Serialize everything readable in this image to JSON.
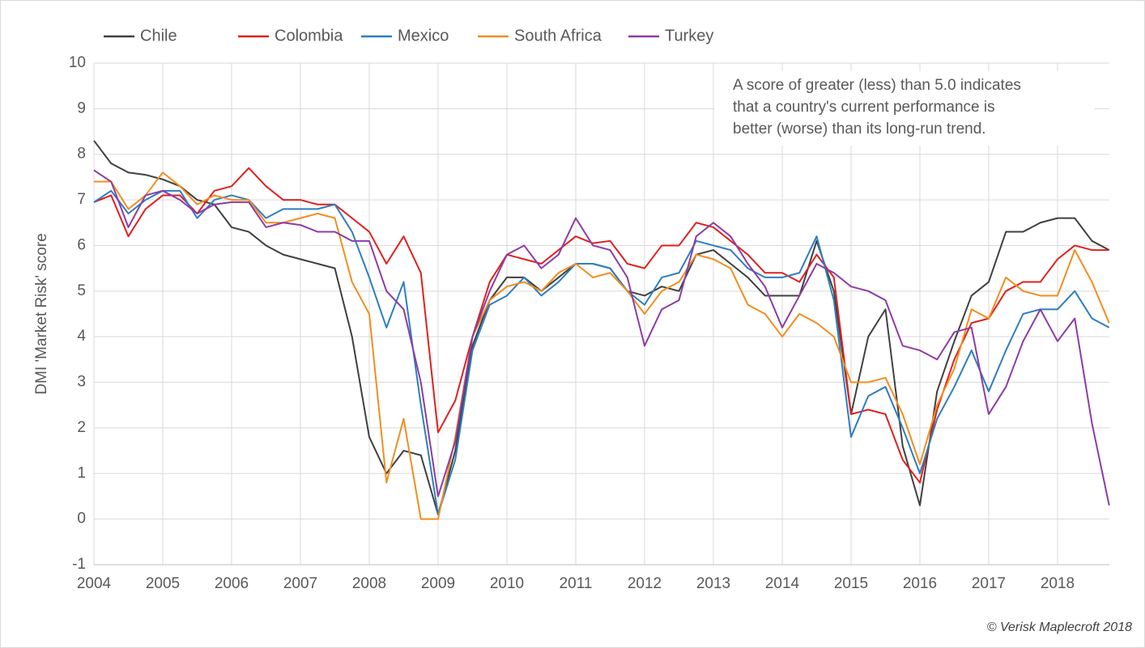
{
  "chart_data": {
    "type": "line",
    "y_label": "DMI 'Market Risk' score",
    "annotation": [
      "A score of greater (less) than 5.0 indicates",
      "that a country's current performance is",
      "better (worse) than its long-run trend."
    ],
    "source": "© Verisk Maplecroft 2018",
    "legend": "top-left",
    "grid": true,
    "xlim": [
      2004,
      2018.75
    ],
    "xticks": [
      2004,
      2005,
      2006,
      2007,
      2008,
      2009,
      2010,
      2011,
      2012,
      2013,
      2014,
      2015,
      2016,
      2017,
      2018
    ],
    "ylim": [
      -1,
      10
    ],
    "yticks": [
      -1,
      0,
      1,
      2,
      3,
      4,
      5,
      6,
      7,
      8,
      9,
      10
    ],
    "x": [
      2004,
      2004.25,
      2004.5,
      2004.75,
      2005,
      2005.25,
      2005.5,
      2005.75,
      2006,
      2006.25,
      2006.5,
      2006.75,
      2007,
      2007.25,
      2007.5,
      2007.75,
      2008,
      2008.25,
      2008.5,
      2008.75,
      2009,
      2009.25,
      2009.5,
      2009.75,
      2010,
      2010.25,
      2010.5,
      2010.75,
      2011,
      2011.25,
      2011.5,
      2011.75,
      2012,
      2012.25,
      2012.5,
      2012.75,
      2013,
      2013.25,
      2013.5,
      2013.75,
      2014,
      2014.25,
      2014.5,
      2014.75,
      2015,
      2015.25,
      2015.5,
      2015.75,
      2016,
      2016.25,
      2016.5,
      2016.75,
      2017,
      2017.25,
      2017.5,
      2017.75,
      2018,
      2018.25,
      2018.5,
      2018.75
    ],
    "series": [
      {
        "name": "Chile",
        "color": "#404040",
        "values": [
          8.3,
          7.8,
          7.6,
          7.55,
          7.45,
          7.3,
          7.0,
          6.9,
          6.4,
          6.3,
          6.0,
          5.8,
          5.7,
          5.6,
          5.5,
          4.0,
          1.8,
          1.0,
          1.5,
          1.4,
          0.1,
          1.5,
          3.8,
          4.8,
          5.3,
          5.3,
          5.0,
          5.3,
          5.6,
          5.6,
          5.5,
          5.0,
          4.9,
          5.1,
          5.0,
          5.8,
          5.9,
          5.6,
          5.3,
          4.9,
          4.9,
          4.9,
          6.1,
          5.0,
          2.3,
          4.0,
          4.6,
          1.6,
          0.3,
          2.8,
          3.9,
          4.9,
          5.2,
          6.3,
          6.3,
          6.5,
          6.6,
          6.6,
          6.1,
          5.9
        ]
      },
      {
        "name": "Colombia",
        "color": "#e0201f",
        "values": [
          6.95,
          7.1,
          6.2,
          6.8,
          7.1,
          7.1,
          6.7,
          7.2,
          7.3,
          7.7,
          7.3,
          7.0,
          7.0,
          6.9,
          6.9,
          6.6,
          6.3,
          5.6,
          6.2,
          5.4,
          1.9,
          2.6,
          4.0,
          5.2,
          5.8,
          5.7,
          5.6,
          5.9,
          6.2,
          6.05,
          6.1,
          5.6,
          5.5,
          6.0,
          6.0,
          6.5,
          6.4,
          6.1,
          5.8,
          5.4,
          5.4,
          5.2,
          5.8,
          5.3,
          2.3,
          2.4,
          2.3,
          1.3,
          0.8,
          2.4,
          3.5,
          4.3,
          4.4,
          5.0,
          5.2,
          5.2,
          5.7,
          6.0,
          5.9,
          5.9
        ]
      },
      {
        "name": "Mexico",
        "color": "#2e7ebf",
        "values": [
          6.95,
          7.2,
          6.7,
          7.0,
          7.2,
          7.2,
          6.6,
          7.0,
          7.1,
          7.0,
          6.6,
          6.8,
          6.8,
          6.8,
          6.9,
          6.3,
          5.3,
          4.2,
          5.2,
          2.5,
          0.1,
          1.3,
          3.7,
          4.7,
          4.9,
          5.3,
          4.9,
          5.2,
          5.6,
          5.6,
          5.5,
          5.0,
          4.7,
          5.3,
          5.4,
          6.1,
          6.0,
          5.9,
          5.5,
          5.3,
          5.3,
          5.4,
          6.2,
          4.8,
          1.8,
          2.7,
          2.9,
          2.0,
          1.0,
          2.2,
          2.9,
          3.7,
          2.8,
          3.7,
          4.5,
          4.6,
          4.6,
          5.0,
          4.4,
          4.2
        ]
      },
      {
        "name": "South Africa",
        "color": "#f28e1e",
        "values": [
          7.4,
          7.4,
          6.8,
          7.1,
          7.6,
          7.3,
          6.9,
          7.1,
          7.0,
          7.0,
          6.5,
          6.5,
          6.6,
          6.7,
          6.6,
          5.2,
          4.5,
          0.8,
          2.2,
          0.0,
          0.0,
          1.8,
          4.0,
          4.8,
          5.1,
          5.2,
          5.0,
          5.4,
          5.6,
          5.3,
          5.4,
          5.0,
          4.5,
          5.0,
          5.2,
          5.8,
          5.7,
          5.5,
          4.7,
          4.5,
          4.0,
          4.5,
          4.3,
          4.0,
          3.0,
          3.0,
          3.1,
          2.3,
          1.2,
          2.5,
          3.3,
          4.6,
          4.4,
          5.3,
          5.0,
          4.9,
          4.9,
          5.9,
          5.2,
          4.3
        ]
      },
      {
        "name": "Turkey",
        "color": "#8e3ba6",
        "values": [
          7.65,
          7.4,
          6.4,
          7.1,
          7.2,
          7.0,
          6.7,
          6.9,
          6.95,
          6.95,
          6.4,
          6.5,
          6.45,
          6.3,
          6.3,
          6.1,
          6.1,
          5.0,
          4.6,
          3.0,
          0.5,
          1.7,
          4.0,
          5.0,
          5.8,
          6.0,
          5.5,
          5.8,
          6.6,
          6.0,
          5.9,
          5.3,
          3.8,
          4.6,
          4.8,
          6.2,
          6.5,
          6.2,
          5.6,
          5.1,
          4.2,
          4.9,
          5.6,
          5.4,
          5.1,
          5.0,
          4.8,
          3.8,
          3.7,
          3.5,
          4.1,
          4.2,
          2.3,
          2.9,
          3.9,
          4.6,
          3.9,
          4.4,
          2.1,
          0.3
        ]
      }
    ]
  }
}
